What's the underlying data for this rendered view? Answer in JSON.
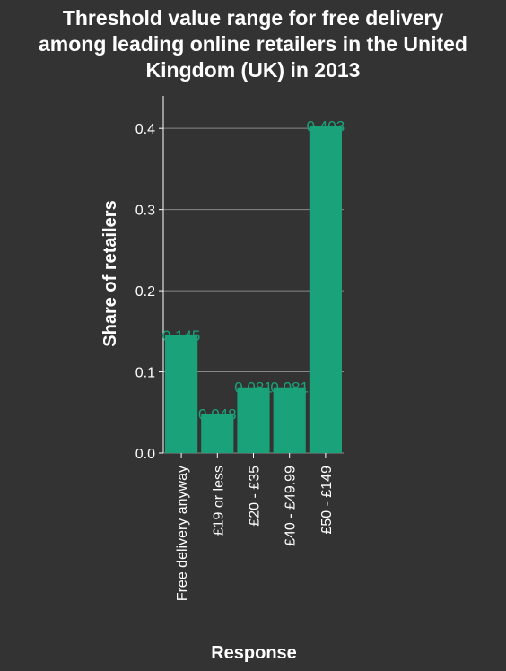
{
  "chart_data": {
    "type": "bar",
    "title_lines": [
      "Threshold value range for free delivery",
      "among leading online retailers in the United",
      "Kingdom (UK) in 2013"
    ],
    "xlabel": "Response",
    "ylabel": "Share of retailers",
    "categories": [
      "Free delivery anyway",
      "£19 or less",
      "£20 - £35",
      "£40 - £49.99",
      "£50 - £149"
    ],
    "values": [
      0.145,
      0.048,
      0.081,
      0.081,
      0.403
    ],
    "data_labels": [
      "0.145",
      "0.048",
      "0.081",
      "0.081",
      "0.403"
    ],
    "yticks": [
      0.0,
      0.1,
      0.2,
      0.3,
      0.4
    ],
    "ytick_labels": [
      "0.0",
      "0.1",
      "0.2",
      "0.3",
      "0.4"
    ],
    "ylim": [
      0,
      0.44
    ],
    "grid": true,
    "colors": {
      "background": "#333333",
      "bar": "#1aa37a",
      "grid": "#888888",
      "text": "#ffffff"
    }
  }
}
